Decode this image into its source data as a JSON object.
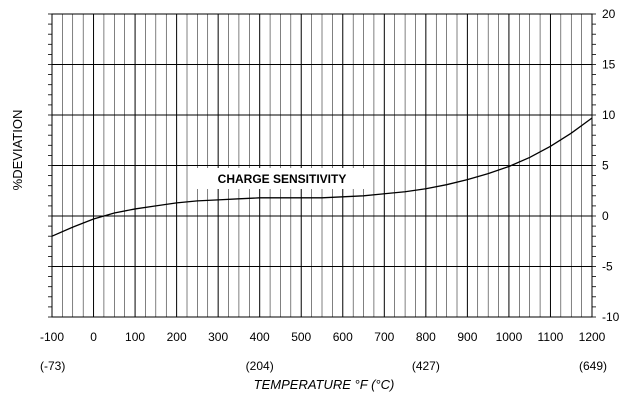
{
  "chart_data": {
    "type": "line",
    "title": "",
    "annotation": "CHARGE SENSITIVITY",
    "xlabel": "TEMPERATURE   °F (°C)",
    "ylabel": "%DEVIATION",
    "xlim": [
      -100,
      1200
    ],
    "ylim": [
      -10,
      20
    ],
    "x_ticks": [
      "-100",
      "0",
      "100",
      "200",
      "300",
      "400",
      "500",
      "600",
      "700",
      "800",
      "900",
      "1000",
      "1100",
      "1200"
    ],
    "x_ticks_celsius": [
      {
        "at": -100,
        "label": "(-73)"
      },
      {
        "at": 400,
        "label": "(204)"
      },
      {
        "at": 800,
        "label": "(427)"
      },
      {
        "at": 1200,
        "label": "(649)"
      }
    ],
    "y_ticks_right": [
      "20",
      "15",
      "10",
      "5",
      "0",
      "-5",
      "-10"
    ],
    "grid": true,
    "series": [
      {
        "x": [
          -100,
          -50,
          0,
          50,
          100,
          150,
          200,
          250,
          300,
          350,
          400,
          450,
          500,
          550,
          600,
          650,
          700,
          750,
          800,
          850,
          900,
          950,
          1000,
          1050,
          1100,
          1150,
          1200
        ],
        "y": [
          -2.0,
          -1.1,
          -0.3,
          0.3,
          0.7,
          1.0,
          1.3,
          1.5,
          1.6,
          1.7,
          1.8,
          1.8,
          1.8,
          1.8,
          1.9,
          2.0,
          2.2,
          2.4,
          2.7,
          3.1,
          3.6,
          4.2,
          4.9,
          5.8,
          6.9,
          8.2,
          9.7
        ]
      }
    ]
  }
}
